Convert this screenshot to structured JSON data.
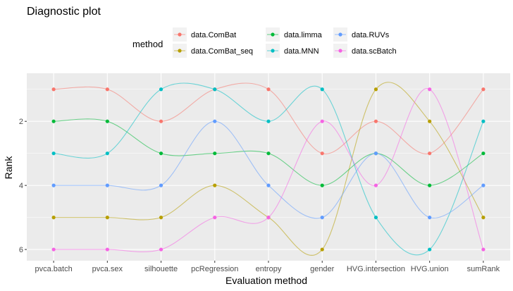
{
  "chart_data": {
    "type": "line",
    "title": "Diagnostic plot",
    "xlabel": "Evaluation method",
    "ylabel": "Rank",
    "categories": [
      "pvca.batch",
      "pvca.sex",
      "silhouette",
      "pcRegression",
      "entropy",
      "gender",
      "HVG.intersection",
      "HVG.union",
      "sumRank"
    ],
    "y_axis": {
      "reversed": true,
      "range": [
        0.5,
        6.35
      ],
      "ticks": [
        2,
        4,
        6
      ]
    },
    "grid": true,
    "smoothed": true,
    "legend": {
      "title": "method",
      "placement": "top"
    },
    "series": [
      {
        "name": "data.ComBat",
        "color": "#F8766D",
        "values": [
          1,
          1,
          2,
          1,
          1,
          3,
          2,
          3,
          1
        ]
      },
      {
        "name": "data.ComBat_seq",
        "color": "#B79F00",
        "values": [
          5,
          5,
          5,
          4,
          5,
          6,
          1,
          2,
          5
        ]
      },
      {
        "name": "data.limma",
        "color": "#00BA38",
        "values": [
          2,
          2,
          3,
          3,
          3,
          4,
          3,
          4,
          3
        ]
      },
      {
        "name": "data.MNN",
        "color": "#00BFC4",
        "values": [
          3,
          3,
          1,
          1,
          2,
          1,
          5,
          6,
          2
        ]
      },
      {
        "name": "data.RUVs",
        "color": "#619CFF",
        "values": [
          4,
          4,
          4,
          2,
          4,
          5,
          3,
          5,
          4
        ]
      },
      {
        "name": "data.scBatch",
        "color": "#F564E3",
        "values": [
          6,
          6,
          6,
          5,
          5,
          2,
          4,
          1,
          6
        ]
      }
    ]
  }
}
